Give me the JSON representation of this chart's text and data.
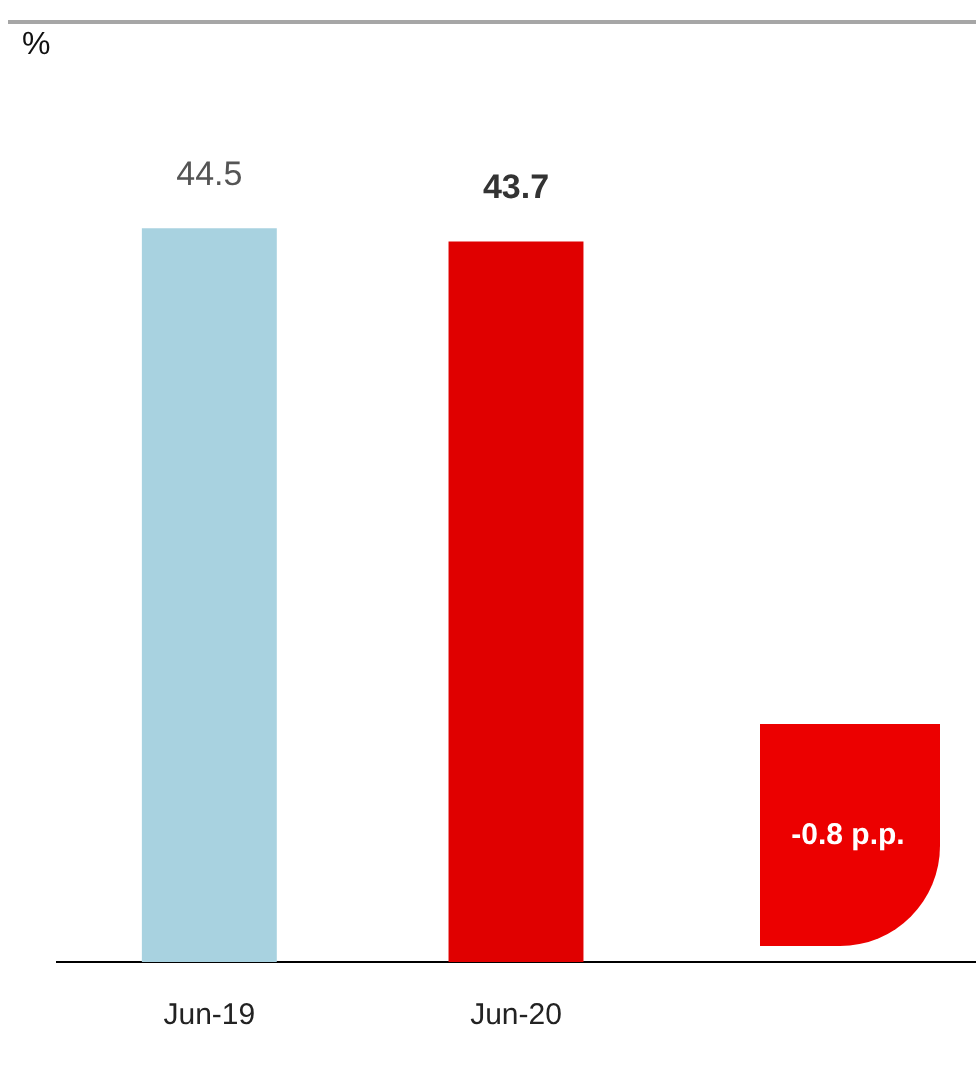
{
  "chart_data": {
    "type": "bar",
    "categories": [
      "Jun-19",
      "Jun-20",
      null
    ],
    "values": [
      44.5,
      43.7,
      null
    ],
    "colors": [
      "#a8d2e0",
      "#e00000",
      "#e00000"
    ],
    "data_labels": true,
    "grid": false,
    "legend": false,
    "tick_labels": "x",
    "annotations": [
      "%",
      "-0.8 p.p."
    ]
  }
}
